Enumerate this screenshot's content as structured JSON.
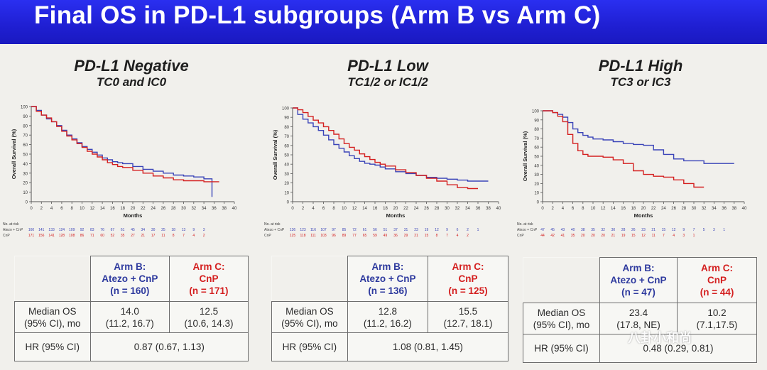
{
  "header": {
    "title": "Final OS in PD-L1 subgroups (Arm B vs Arm C)"
  },
  "watermark": "八卦小和尚",
  "colors": {
    "arm_b": "#3a44b8",
    "arm_c": "#d42020",
    "banner": "#2426e0"
  },
  "panels": [
    {
      "title": "PD-L1 Negative",
      "subtitle": "TC0 and IC0",
      "table": {
        "arm_b_label": "Arm B:",
        "arm_b_drug": "Atezo + CnP",
        "arm_b_n": "(n = 160)",
        "arm_c_label": "Arm C:",
        "arm_c_drug": "CnP",
        "arm_c_n": "(n = 171)",
        "median_label_1": "Median OS",
        "median_label_2": "(95% CI), mo",
        "arm_b_median": "14.0",
        "arm_b_median_ci": "(11.2, 16.7)",
        "arm_c_median": "12.5",
        "arm_c_median_ci": "(10.6, 14.3)",
        "hr_label": "HR (95% CI)",
        "hr_value": "0.87 (0.67, 1.13)"
      }
    },
    {
      "title": "PD-L1 Low",
      "subtitle": "TC1/2 or IC1/2",
      "table": {
        "arm_b_label": "Arm B:",
        "arm_b_drug": "Atezo + CnP",
        "arm_b_n": "(n = 136)",
        "arm_c_label": "Arm C:",
        "arm_c_drug": "CnP",
        "arm_c_n": "(n = 125)",
        "median_label_1": "Median OS",
        "median_label_2": "(95% CI), mo",
        "arm_b_median": "12.8",
        "arm_b_median_ci": "(11.2, 16.2)",
        "arm_c_median": "15.5",
        "arm_c_median_ci": "(12.7, 18.1)",
        "hr_label": "HR (95% CI)",
        "hr_value": "1.08 (0.81, 1.45)"
      }
    },
    {
      "title": "PD-L1 High",
      "subtitle": "TC3 or IC3",
      "table": {
        "arm_b_label": "Arm B:",
        "arm_b_drug": "Atezo + CnP",
        "arm_b_n": "(n = 47)",
        "arm_c_label": "Arm C:",
        "arm_c_drug": "CnP",
        "arm_c_n": "(n = 44)",
        "median_label_1": "Median OS",
        "median_label_2": "(95% CI), mo",
        "arm_b_median": "23.4",
        "arm_b_median_ci": "(17.8, NE)",
        "arm_c_median": "10.2",
        "arm_c_median_ci": "(7.1,17.5)",
        "hr_label": "HR (95% CI)",
        "hr_value": "0.48 (0.29, 0.81)"
      }
    }
  ],
  "chart_data": [
    {
      "type": "line",
      "xlabel": "Months",
      "ylabel": "Overall Survival (%)",
      "xlim": [
        0,
        40
      ],
      "ylim": [
        0,
        100
      ],
      "xticks": [
        0,
        2,
        4,
        6,
        8,
        10,
        12,
        14,
        16,
        18,
        20,
        22,
        24,
        26,
        28,
        30,
        32,
        34,
        36,
        38,
        40
      ],
      "yticks": [
        0,
        10,
        20,
        30,
        40,
        50,
        60,
        70,
        80,
        90,
        100
      ],
      "series": [
        {
          "name": "Atezo + CnP",
          "color": "#3a44b8",
          "x": [
            0,
            1,
            2,
            3,
            4,
            5,
            6,
            7,
            8,
            9,
            10,
            11,
            12,
            13,
            14,
            15,
            16,
            17,
            18,
            20,
            22,
            24,
            26,
            28,
            30,
            32,
            34,
            35.5,
            35.6
          ],
          "y": [
            100,
            96,
            91,
            87,
            84,
            80,
            75,
            70,
            66,
            62,
            58,
            55,
            52,
            49,
            46,
            44,
            42,
            41,
            40,
            37,
            34,
            32,
            30,
            28,
            27,
            26,
            24,
            24,
            5
          ]
        },
        {
          "name": "CnP",
          "color": "#d42020",
          "x": [
            0,
            1,
            2,
            3,
            4,
            5,
            6,
            7,
            8,
            9,
            10,
            11,
            12,
            13,
            14,
            15,
            16,
            17,
            18,
            20,
            22,
            24,
            26,
            28,
            30,
            32,
            34,
            36,
            37
          ],
          "y": [
            100,
            95,
            91,
            88,
            84,
            79,
            74,
            69,
            65,
            61,
            57,
            53,
            50,
            47,
            44,
            41,
            39,
            37,
            36,
            33,
            30,
            27,
            25,
            23,
            22,
            22,
            21,
            21,
            21
          ]
        }
      ],
      "risk_table": {
        "title": "No. at risk",
        "rows": [
          {
            "label": "Atezo + CnP",
            "values": [
              "160",
              "141",
              "133",
              "124",
              "109",
              "92",
              "83",
              "76",
              "67",
              "61",
              "45",
              "34",
              "30",
              "25",
              "18",
              "13",
              "9",
              "3"
            ]
          },
          {
            "label": "CnP",
            "values": [
              "171",
              "156",
              "141",
              "128",
              "108",
              "86",
              "71",
              "60",
              "52",
              "35",
              "27",
              "21",
              "17",
              "11",
              "8",
              "7",
              "4",
              "2"
            ]
          }
        ]
      }
    },
    {
      "type": "line",
      "xlabel": "Months",
      "ylabel": "Overall Survival (%)",
      "xlim": [
        0,
        40
      ],
      "ylim": [
        0,
        100
      ],
      "xticks": [
        0,
        2,
        4,
        6,
        8,
        10,
        12,
        14,
        16,
        18,
        20,
        22,
        24,
        26,
        28,
        30,
        32,
        34,
        36,
        38,
        40
      ],
      "yticks": [
        0,
        10,
        20,
        30,
        40,
        50,
        60,
        70,
        80,
        90,
        100
      ],
      "series": [
        {
          "name": "Atezo + CnP",
          "color": "#3a44b8",
          "x": [
            0,
            1,
            2,
            3,
            4,
            5,
            6,
            7,
            8,
            9,
            10,
            11,
            12,
            13,
            14,
            15,
            16,
            17,
            18,
            20,
            22,
            24,
            26,
            28,
            30,
            32,
            34,
            36,
            38
          ],
          "y": [
            100,
            93,
            88,
            84,
            80,
            76,
            71,
            66,
            61,
            57,
            53,
            49,
            46,
            43,
            41,
            40,
            39,
            37,
            35,
            32,
            30,
            28,
            26,
            25,
            24,
            23,
            22,
            22,
            22
          ]
        },
        {
          "name": "CnP",
          "color": "#d42020",
          "x": [
            0,
            1,
            2,
            3,
            4,
            5,
            6,
            7,
            8,
            9,
            10,
            11,
            12,
            13,
            14,
            15,
            16,
            17,
            18,
            20,
            22,
            24,
            26,
            28,
            30,
            32,
            34,
            36
          ],
          "y": [
            100,
            98,
            95,
            91,
            87,
            84,
            80,
            76,
            72,
            67,
            62,
            58,
            55,
            51,
            48,
            45,
            42,
            40,
            38,
            34,
            31,
            28,
            25,
            22,
            18,
            15,
            14,
            14
          ]
        }
      ],
      "risk_table": {
        "title": "No. at risk",
        "rows": [
          {
            "label": "Atezo + CnP",
            "values": [
              "136",
              "123",
              "116",
              "107",
              "97",
              "85",
              "72",
              "61",
              "56",
              "51",
              "37",
              "31",
              "23",
              "19",
              "12",
              "9",
              "6",
              "2",
              "1"
            ]
          },
          {
            "label": "CnP",
            "values": [
              "125",
              "118",
              "111",
              "103",
              "96",
              "89",
              "77",
              "65",
              "59",
              "49",
              "36",
              "29",
              "21",
              "15",
              "8",
              "7",
              "4",
              "2",
              ""
            ]
          }
        ]
      }
    },
    {
      "type": "line",
      "xlabel": "Months",
      "ylabel": "Overall Survival (%)",
      "xlim": [
        0,
        40
      ],
      "ylim": [
        0,
        100
      ],
      "xticks": [
        0,
        2,
        4,
        6,
        8,
        10,
        12,
        14,
        16,
        18,
        20,
        22,
        24,
        26,
        28,
        30,
        32,
        34,
        36,
        38,
        40
      ],
      "yticks": [
        0,
        10,
        20,
        30,
        40,
        50,
        60,
        70,
        80,
        90,
        100
      ],
      "series": [
        {
          "name": "Atezo + CnP",
          "color": "#3a44b8",
          "x": [
            0,
            2,
            3,
            4,
            5,
            6,
            7,
            8,
            9,
            10,
            12,
            14,
            16,
            18,
            20,
            22,
            24,
            26,
            28,
            30,
            32,
            34,
            36,
            38
          ],
          "y": [
            100,
            98,
            96,
            93,
            87,
            80,
            76,
            73,
            71,
            69,
            68,
            66,
            64,
            63,
            62,
            57,
            52,
            47,
            45,
            45,
            42,
            42,
            42,
            42
          ]
        },
        {
          "name": "CnP",
          "color": "#d42020",
          "x": [
            0,
            2,
            3,
            4,
            5,
            6,
            7,
            8,
            9,
            10,
            12,
            14,
            16,
            18,
            20,
            22,
            24,
            26,
            28,
            30,
            32
          ],
          "y": [
            100,
            98,
            94,
            88,
            74,
            64,
            56,
            52,
            50,
            50,
            49,
            46,
            42,
            34,
            30,
            28,
            27,
            24,
            20,
            16,
            16
          ]
        }
      ],
      "risk_table": {
        "title": "No. at risk",
        "rows": [
          {
            "label": "Atezo + CnP",
            "values": [
              "47",
              "45",
              "43",
              "40",
              "38",
              "35",
              "32",
              "30",
              "28",
              "26",
              "23",
              "21",
              "15",
              "12",
              "9",
              "7",
              "5",
              "3",
              "1"
            ]
          },
          {
            "label": "CnP",
            "values": [
              "44",
              "42",
              "41",
              "35",
              "20",
              "20",
              "20",
              "21",
              "19",
              "15",
              "12",
              "11",
              "7",
              "4",
              "3",
              "1",
              "",
              "",
              ""
            ]
          }
        ]
      }
    }
  ]
}
